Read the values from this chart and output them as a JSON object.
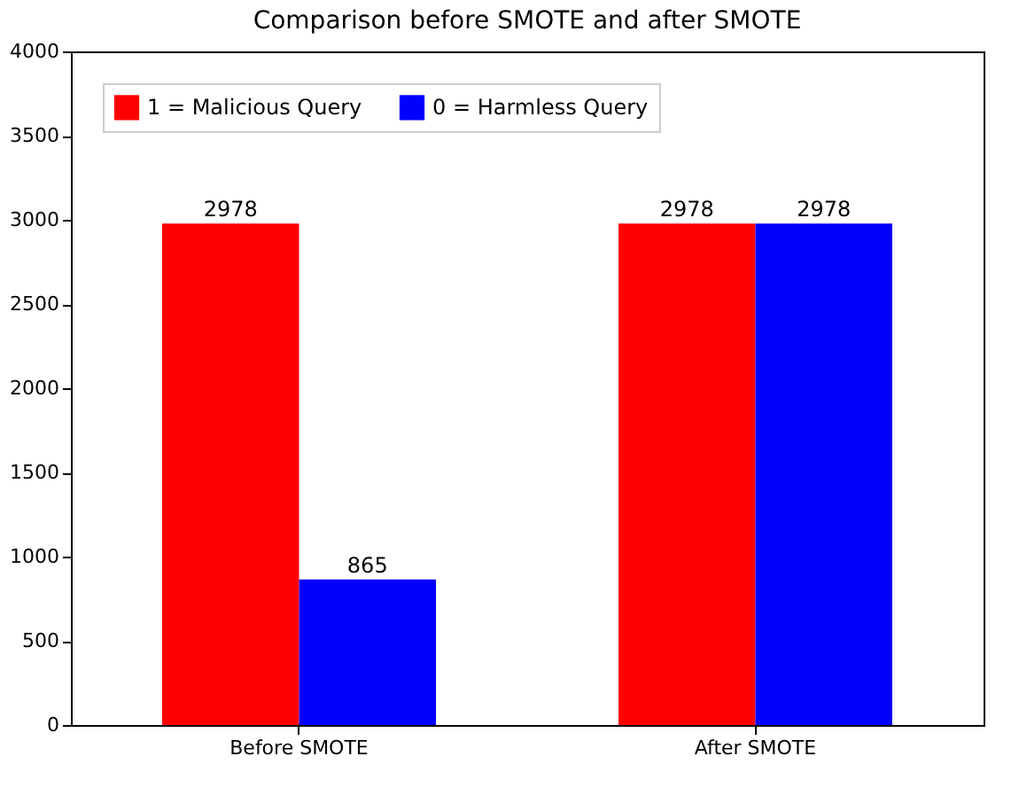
{
  "chart_data": {
    "type": "bar",
    "title": "Comparison before SMOTE and after SMOTE",
    "categories": [
      "Before SMOTE",
      "After SMOTE"
    ],
    "series": [
      {
        "name": "1 = Malicious Query",
        "color": "#ff0000",
        "values": [
          2978,
          2978
        ]
      },
      {
        "name": "0 = Harmless Query",
        "color": "#0000ff",
        "values": [
          865,
          2978
        ]
      }
    ],
    "ylim": [
      0,
      4000
    ],
    "yticks": [
      0,
      500,
      1000,
      1500,
      2000,
      2500,
      3000,
      3500,
      4000
    ],
    "grid": false,
    "legend": "top left",
    "data_labels": true
  }
}
